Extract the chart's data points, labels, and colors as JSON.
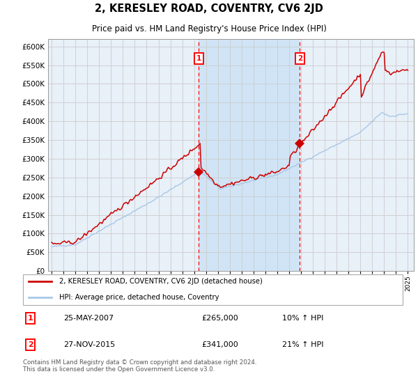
{
  "title": "2, KERESLEY ROAD, COVENTRY, CV6 2JD",
  "subtitle": "Price paid vs. HM Land Registry's House Price Index (HPI)",
  "ylim": [
    0,
    620000
  ],
  "yticks": [
    0,
    50000,
    100000,
    150000,
    200000,
    250000,
    300000,
    350000,
    400000,
    450000,
    500000,
    550000,
    600000
  ],
  "x_start_year": 1995,
  "x_end_year": 2025,
  "purchase1_date": 2007.38,
  "purchase1_price": 265000,
  "purchase2_date": 2015.9,
  "purchase2_price": 341000,
  "hpi_color": "#a8c8e8",
  "price_color": "#cc0000",
  "grid_color": "#cccccc",
  "background_color": "#e8f0f8",
  "shade_color": "#d0e4f5",
  "legend_entry1": "2, KERESLEY ROAD, COVENTRY, CV6 2JD (detached house)",
  "legend_entry2": "HPI: Average price, detached house, Coventry",
  "table_row1_num": "1",
  "table_row1_date": "25-MAY-2007",
  "table_row1_price": "£265,000",
  "table_row1_hpi": "10% ↑ HPI",
  "table_row2_num": "2",
  "table_row2_date": "27-NOV-2015",
  "table_row2_price": "£341,000",
  "table_row2_hpi": "21% ↑ HPI",
  "footer": "Contains HM Land Registry data © Crown copyright and database right 2024.\nThis data is licensed under the Open Government Licence v3.0."
}
